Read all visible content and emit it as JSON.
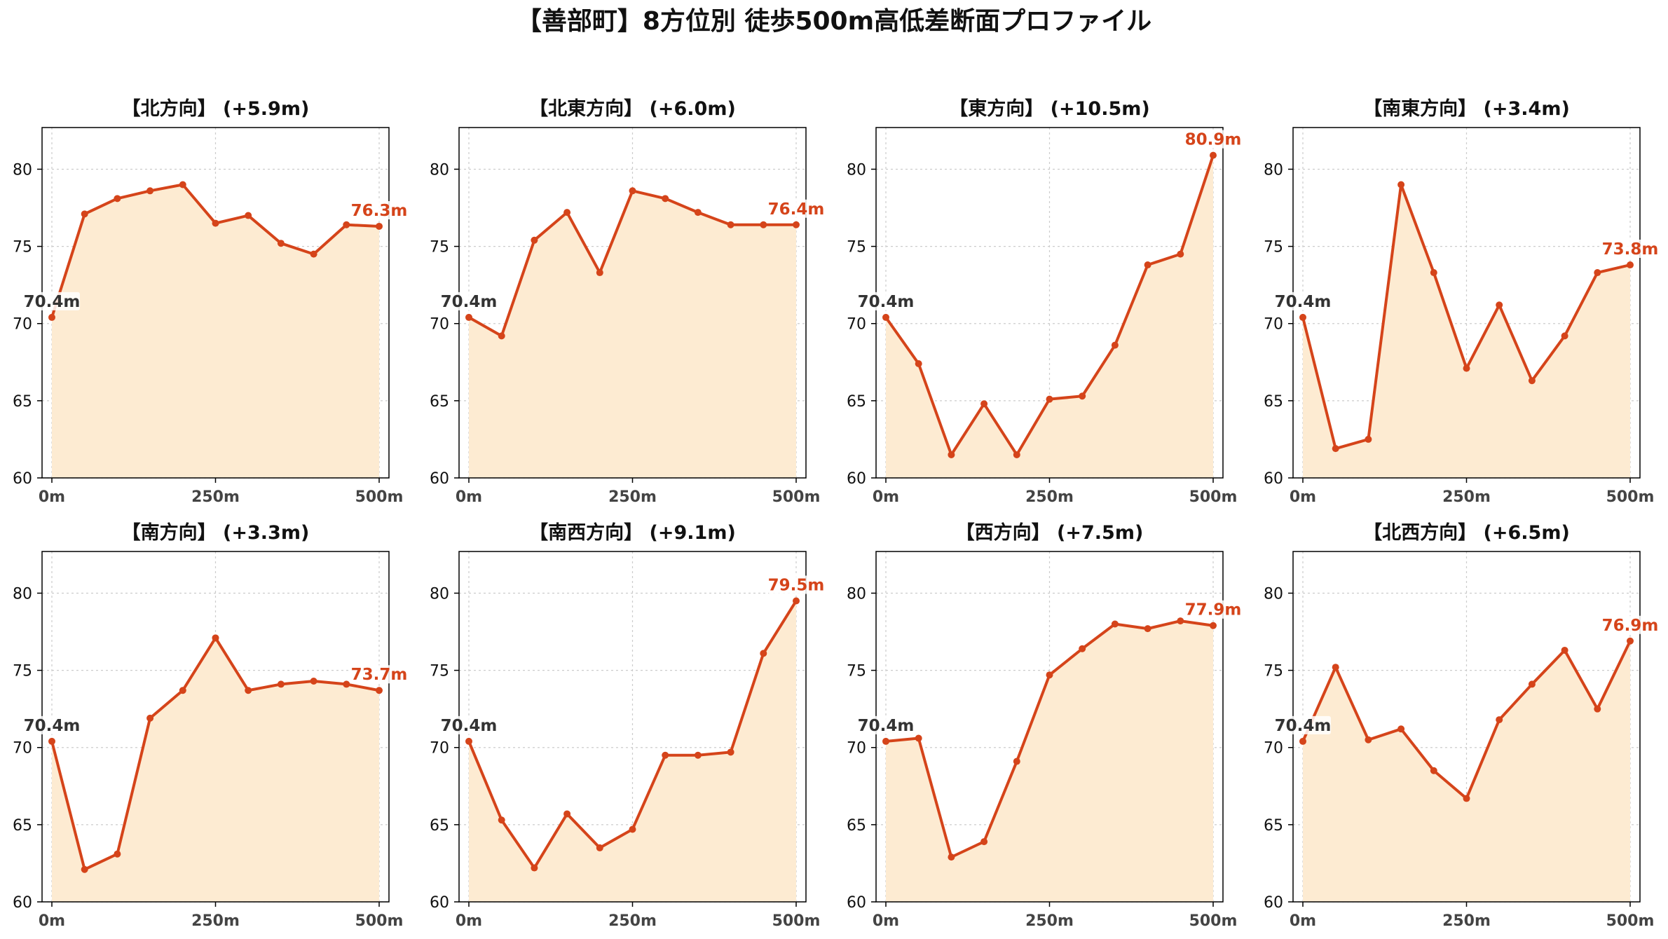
{
  "title": "【善部町】8方位別 徒歩500m高低差断面プロファイル",
  "colors": {
    "line": "#d5441a",
    "fill": "#fdebd2",
    "start_label": "#333333",
    "end_label": "#d5441a",
    "grid": "#cccccc"
  },
  "chart_data": [
    {
      "type": "area",
      "title": "【北方向】 (+5.9m)",
      "x": [
        0,
        50,
        100,
        150,
        200,
        250,
        300,
        350,
        400,
        450,
        500
      ],
      "y": [
        70.4,
        77.1,
        78.1,
        78.6,
        79.0,
        76.5,
        77.0,
        75.2,
        74.5,
        76.4,
        76.3
      ],
      "x_tick_labels": [
        "0m",
        "250m",
        "500m"
      ],
      "y_ticks": [
        60,
        65,
        70,
        75,
        80
      ],
      "ylim": [
        60,
        82.7
      ],
      "start_label": "70.4m",
      "end_label": "76.3m",
      "grid": true
    },
    {
      "type": "area",
      "title": "【北東方向】 (+6.0m)",
      "x": [
        0,
        50,
        100,
        150,
        200,
        250,
        300,
        350,
        400,
        450,
        500
      ],
      "y": [
        70.4,
        69.2,
        75.4,
        77.2,
        73.3,
        78.6,
        78.1,
        77.2,
        76.4,
        76.4,
        76.4
      ],
      "x_tick_labels": [
        "0m",
        "250m",
        "500m"
      ],
      "y_ticks": [
        60,
        65,
        70,
        75,
        80
      ],
      "ylim": [
        60,
        82.7
      ],
      "start_label": "70.4m",
      "end_label": "76.4m",
      "grid": true
    },
    {
      "type": "area",
      "title": "【東方向】 (+10.5m)",
      "x": [
        0,
        50,
        100,
        150,
        200,
        250,
        300,
        350,
        400,
        450,
        500
      ],
      "y": [
        70.4,
        67.4,
        61.5,
        64.8,
        61.5,
        65.1,
        65.3,
        68.6,
        73.8,
        74.5,
        80.9
      ],
      "x_tick_labels": [
        "0m",
        "250m",
        "500m"
      ],
      "y_ticks": [
        60,
        65,
        70,
        75,
        80
      ],
      "ylim": [
        60,
        82.7
      ],
      "start_label": "70.4m",
      "end_label": "80.9m",
      "grid": true
    },
    {
      "type": "area",
      "title": "【南東方向】 (+3.4m)",
      "x": [
        0,
        50,
        100,
        150,
        200,
        250,
        300,
        350,
        400,
        450,
        500
      ],
      "y": [
        70.4,
        61.9,
        62.5,
        79.0,
        73.3,
        67.1,
        71.2,
        66.3,
        69.2,
        73.3,
        73.8
      ],
      "x_tick_labels": [
        "0m",
        "250m",
        "500m"
      ],
      "y_ticks": [
        60,
        65,
        70,
        75,
        80
      ],
      "ylim": [
        60,
        82.7
      ],
      "start_label": "70.4m",
      "end_label": "73.8m",
      "grid": true
    },
    {
      "type": "area",
      "title": "【南方向】 (+3.3m)",
      "x": [
        0,
        50,
        100,
        150,
        200,
        250,
        300,
        350,
        400,
        450,
        500
      ],
      "y": [
        70.4,
        62.1,
        63.1,
        71.9,
        73.7,
        77.1,
        73.7,
        74.1,
        74.3,
        74.1,
        73.7
      ],
      "x_tick_labels": [
        "0m",
        "250m",
        "500m"
      ],
      "y_ticks": [
        60,
        65,
        70,
        75,
        80
      ],
      "ylim": [
        60,
        82.7
      ],
      "start_label": "70.4m",
      "end_label": "73.7m",
      "grid": true
    },
    {
      "type": "area",
      "title": "【南西方向】 (+9.1m)",
      "x": [
        0,
        50,
        100,
        150,
        200,
        250,
        300,
        350,
        400,
        450,
        500
      ],
      "y": [
        70.4,
        65.3,
        62.2,
        65.7,
        63.5,
        64.7,
        69.5,
        69.5,
        69.7,
        76.1,
        79.5
      ],
      "x_tick_labels": [
        "0m",
        "250m",
        "500m"
      ],
      "y_ticks": [
        60,
        65,
        70,
        75,
        80
      ],
      "ylim": [
        60,
        82.7
      ],
      "start_label": "70.4m",
      "end_label": "79.5m",
      "grid": true
    },
    {
      "type": "area",
      "title": "【西方向】 (+7.5m)",
      "x": [
        0,
        50,
        100,
        150,
        200,
        250,
        300,
        350,
        400,
        450,
        500
      ],
      "y": [
        70.4,
        70.6,
        62.9,
        63.9,
        69.1,
        74.7,
        76.4,
        78.0,
        77.7,
        78.2,
        77.9
      ],
      "x_tick_labels": [
        "0m",
        "250m",
        "500m"
      ],
      "y_ticks": [
        60,
        65,
        70,
        75,
        80
      ],
      "ylim": [
        60,
        82.7
      ],
      "start_label": "70.4m",
      "end_label": "77.9m",
      "grid": true
    },
    {
      "type": "area",
      "title": "【北西方向】 (+6.5m)",
      "x": [
        0,
        50,
        100,
        150,
        200,
        250,
        300,
        350,
        400,
        450,
        500
      ],
      "y": [
        70.4,
        75.2,
        70.5,
        71.2,
        68.5,
        66.7,
        71.8,
        74.1,
        76.3,
        72.5,
        76.9
      ],
      "x_tick_labels": [
        "0m",
        "250m",
        "500m"
      ],
      "y_ticks": [
        60,
        65,
        70,
        75,
        80
      ],
      "ylim": [
        60,
        82.7
      ],
      "start_label": "70.4m",
      "end_label": "76.9m",
      "grid": true
    }
  ]
}
